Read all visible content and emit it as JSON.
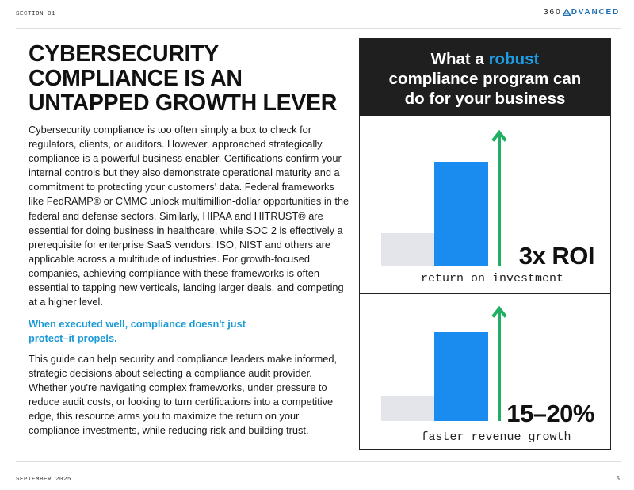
{
  "header": {
    "section_label": "SECTION 01",
    "logo": {
      "number": "360",
      "word": "DVANCED",
      "icon": "a-triangle-logo-icon",
      "brand_color": "#1f6fb0"
    }
  },
  "headline": [
    "CYBERSECURITY",
    "COMPLIANCE IS AN",
    "UNTAPPED GROWTH LEVER"
  ],
  "body": {
    "paragraph1": "Cybersecurity compliance is too often simply a box to check for regulators, clients, or auditors. However, approached strategically, compliance is a powerful business enabler. Certifications confirm your internal controls but they also demonstrate operational maturity and a commitment to protecting your customers' data. Federal frameworks like FedRAMP® or CMMC unlock multimillion-dollar opportunities in the federal and defense sectors. Similarly, HIPAA and HITRUST® are essential for doing business in healthcare, while SOC 2 is effectively a prerequisite for enterprise SaaS vendors. ISO, NIST and others are applicable across a multitude of industries. For growth-focused companies, achieving compliance with these frameworks is often essential to tapping new verticals, landing larger deals, and competing at a higher level.",
    "callout": "When executed well, compliance doesn't just protect–it propels.",
    "paragraph2": "This guide can help security and compliance leaders make informed, strategic decisions about selecting a compliance audit provider. Whether you're navigating complex frameworks, under pressure to reduce audit costs, or looking to turn certifications into a competitive edge, this resource arms you to maximize the return on your compliance investments, while reducing risk and building trust."
  },
  "panel": {
    "title_pre": "What a ",
    "title_accent": "robust",
    "title_line2": "compliance program can",
    "title_line3": "do for your business",
    "stats": [
      {
        "value": "3x ROI",
        "label": "return on investment",
        "bars": [
          0.3,
          1.0
        ]
      },
      {
        "value": "15–20%",
        "label": "faster revenue growth",
        "bars": [
          0.3,
          1.0
        ]
      }
    ]
  },
  "colors": {
    "accent_blue": "#1f9be3",
    "bar_blue": "#1a8cf0",
    "bar_gray": "#e4e5ea",
    "arrow_green": "#1fae63",
    "dark": "#1f1f1f"
  },
  "footer": {
    "date": "SEPTEMBER 2025",
    "page": "5"
  }
}
